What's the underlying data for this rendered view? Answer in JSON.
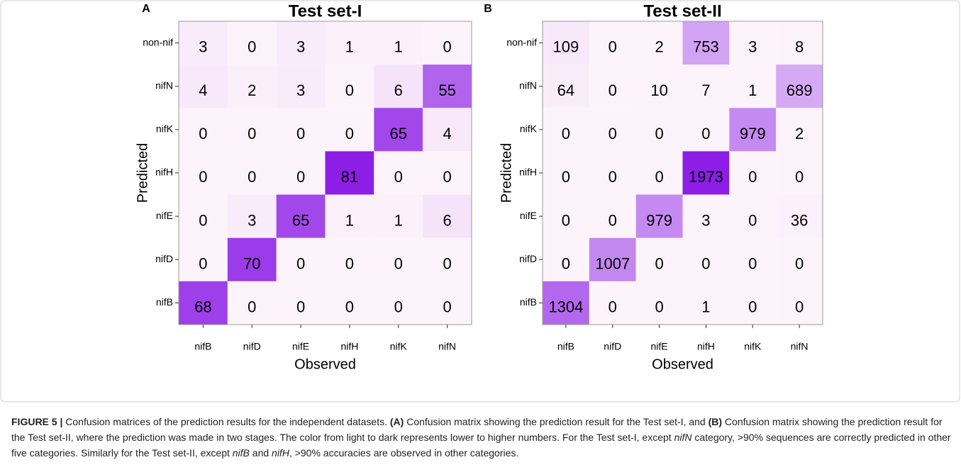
{
  "chart_data": [
    {
      "type": "heatmap",
      "panel": "A",
      "title": "Test set-I",
      "xlabel": "Observed",
      "ylabel": "Predicted",
      "x": [
        "nifB",
        "nifD",
        "nifE",
        "nifH",
        "nifK",
        "nifN"
      ],
      "y": [
        "non-nif",
        "nifN",
        "nifK",
        "nifH",
        "nifE",
        "nifD",
        "nifB"
      ],
      "values": [
        [
          3,
          0,
          3,
          1,
          1,
          0
        ],
        [
          4,
          2,
          3,
          0,
          6,
          55
        ],
        [
          0,
          0,
          0,
          0,
          65,
          4
        ],
        [
          0,
          0,
          0,
          81,
          0,
          0
        ],
        [
          0,
          3,
          65,
          1,
          1,
          6
        ],
        [
          0,
          70,
          0,
          0,
          0,
          0
        ],
        [
          68,
          0,
          0,
          0,
          0,
          0
        ]
      ],
      "colors": [
        "#fdf4fb",
        "#8c1ee6"
      ]
    },
    {
      "type": "heatmap",
      "panel": "B",
      "title": "Test set-II",
      "xlabel": "Observed",
      "ylabel": "Predicted",
      "x": [
        "nifB",
        "nifD",
        "nifE",
        "nifH",
        "nifK",
        "nifN"
      ],
      "y": [
        "non-nif",
        "nifN",
        "nifK",
        "nifH",
        "nifE",
        "nifD",
        "nifB"
      ],
      "values": [
        [
          109,
          0,
          2,
          753,
          3,
          8
        ],
        [
          64,
          0,
          10,
          7,
          1,
          689
        ],
        [
          0,
          0,
          0,
          0,
          979,
          2
        ],
        [
          0,
          0,
          0,
          1973,
          0,
          0
        ],
        [
          0,
          0,
          979,
          3,
          0,
          36
        ],
        [
          0,
          1007,
          0,
          0,
          0,
          0
        ],
        [
          1304,
          0,
          0,
          1,
          0,
          0
        ]
      ],
      "colors": [
        "#fdf4fb",
        "#8c1ee6"
      ]
    }
  ],
  "caption": {
    "segments": [
      {
        "text": "FIGURE 5 |",
        "style": "bold"
      },
      {
        "text": " Confusion matrices of the prediction results for the independent datasets. ",
        "style": "normal"
      },
      {
        "text": "(A)",
        "style": "bold"
      },
      {
        "text": " Confusion matrix showing the prediction result for the Test set-I, and ",
        "style": "normal"
      },
      {
        "text": "(B)",
        "style": "bold"
      },
      {
        "text": " Confusion matrix showing the prediction result for the Test set-II, where the prediction was made in two stages. The color from light to dark represents lower to higher numbers. For the Test set-I, except ",
        "style": "normal"
      },
      {
        "text": "nifN",
        "style": "italic"
      },
      {
        "text": " category, >90% sequences are correctly predicted in other five categories. Similarly for the Test set-II, except ",
        "style": "normal"
      },
      {
        "text": "nifB",
        "style": "italic"
      },
      {
        "text": " and ",
        "style": "normal"
      },
      {
        "text": "nifH",
        "style": "italic"
      },
      {
        "text": ", >90% accuracies are observed in other categories.",
        "style": "normal"
      }
    ]
  }
}
